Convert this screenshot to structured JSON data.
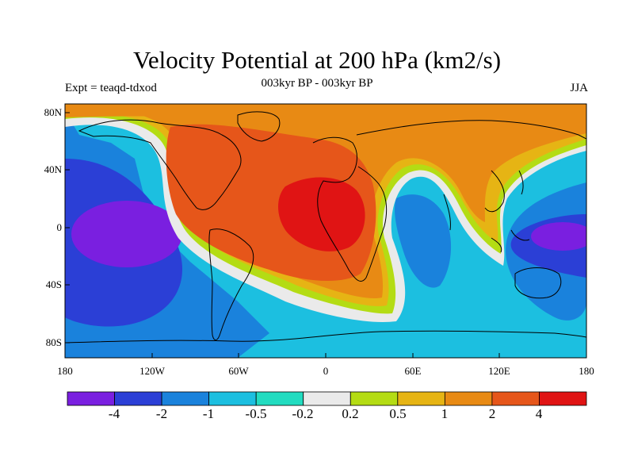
{
  "title": "Velocity Potential at 200 hPa (km2/s)",
  "left_string": "Expt = teaqd-tdxod",
  "center_string": "003kyr BP - 003kyr BP",
  "right_string": "JJA",
  "lat_labels": [
    "80N",
    "40N",
    "0",
    "40S",
    "80S"
  ],
  "lon_labels": [
    "180",
    "120W",
    "60W",
    "0",
    "60E",
    "120E",
    "180"
  ],
  "colorbar": {
    "labels": [
      "-4",
      "-2",
      "-1",
      "-0.5",
      "-0.2",
      "0.2",
      "0.5",
      "1",
      "2",
      "4"
    ],
    "colors": [
      "#7a1fe0",
      "#2b3fd6",
      "#1a82dc",
      "#1cbfe0",
      "#22dcc0",
      "#eaeaea",
      "#b4dc14",
      "#e6b414",
      "#e88a14",
      "#e6561a",
      "#e01414"
    ]
  }
}
